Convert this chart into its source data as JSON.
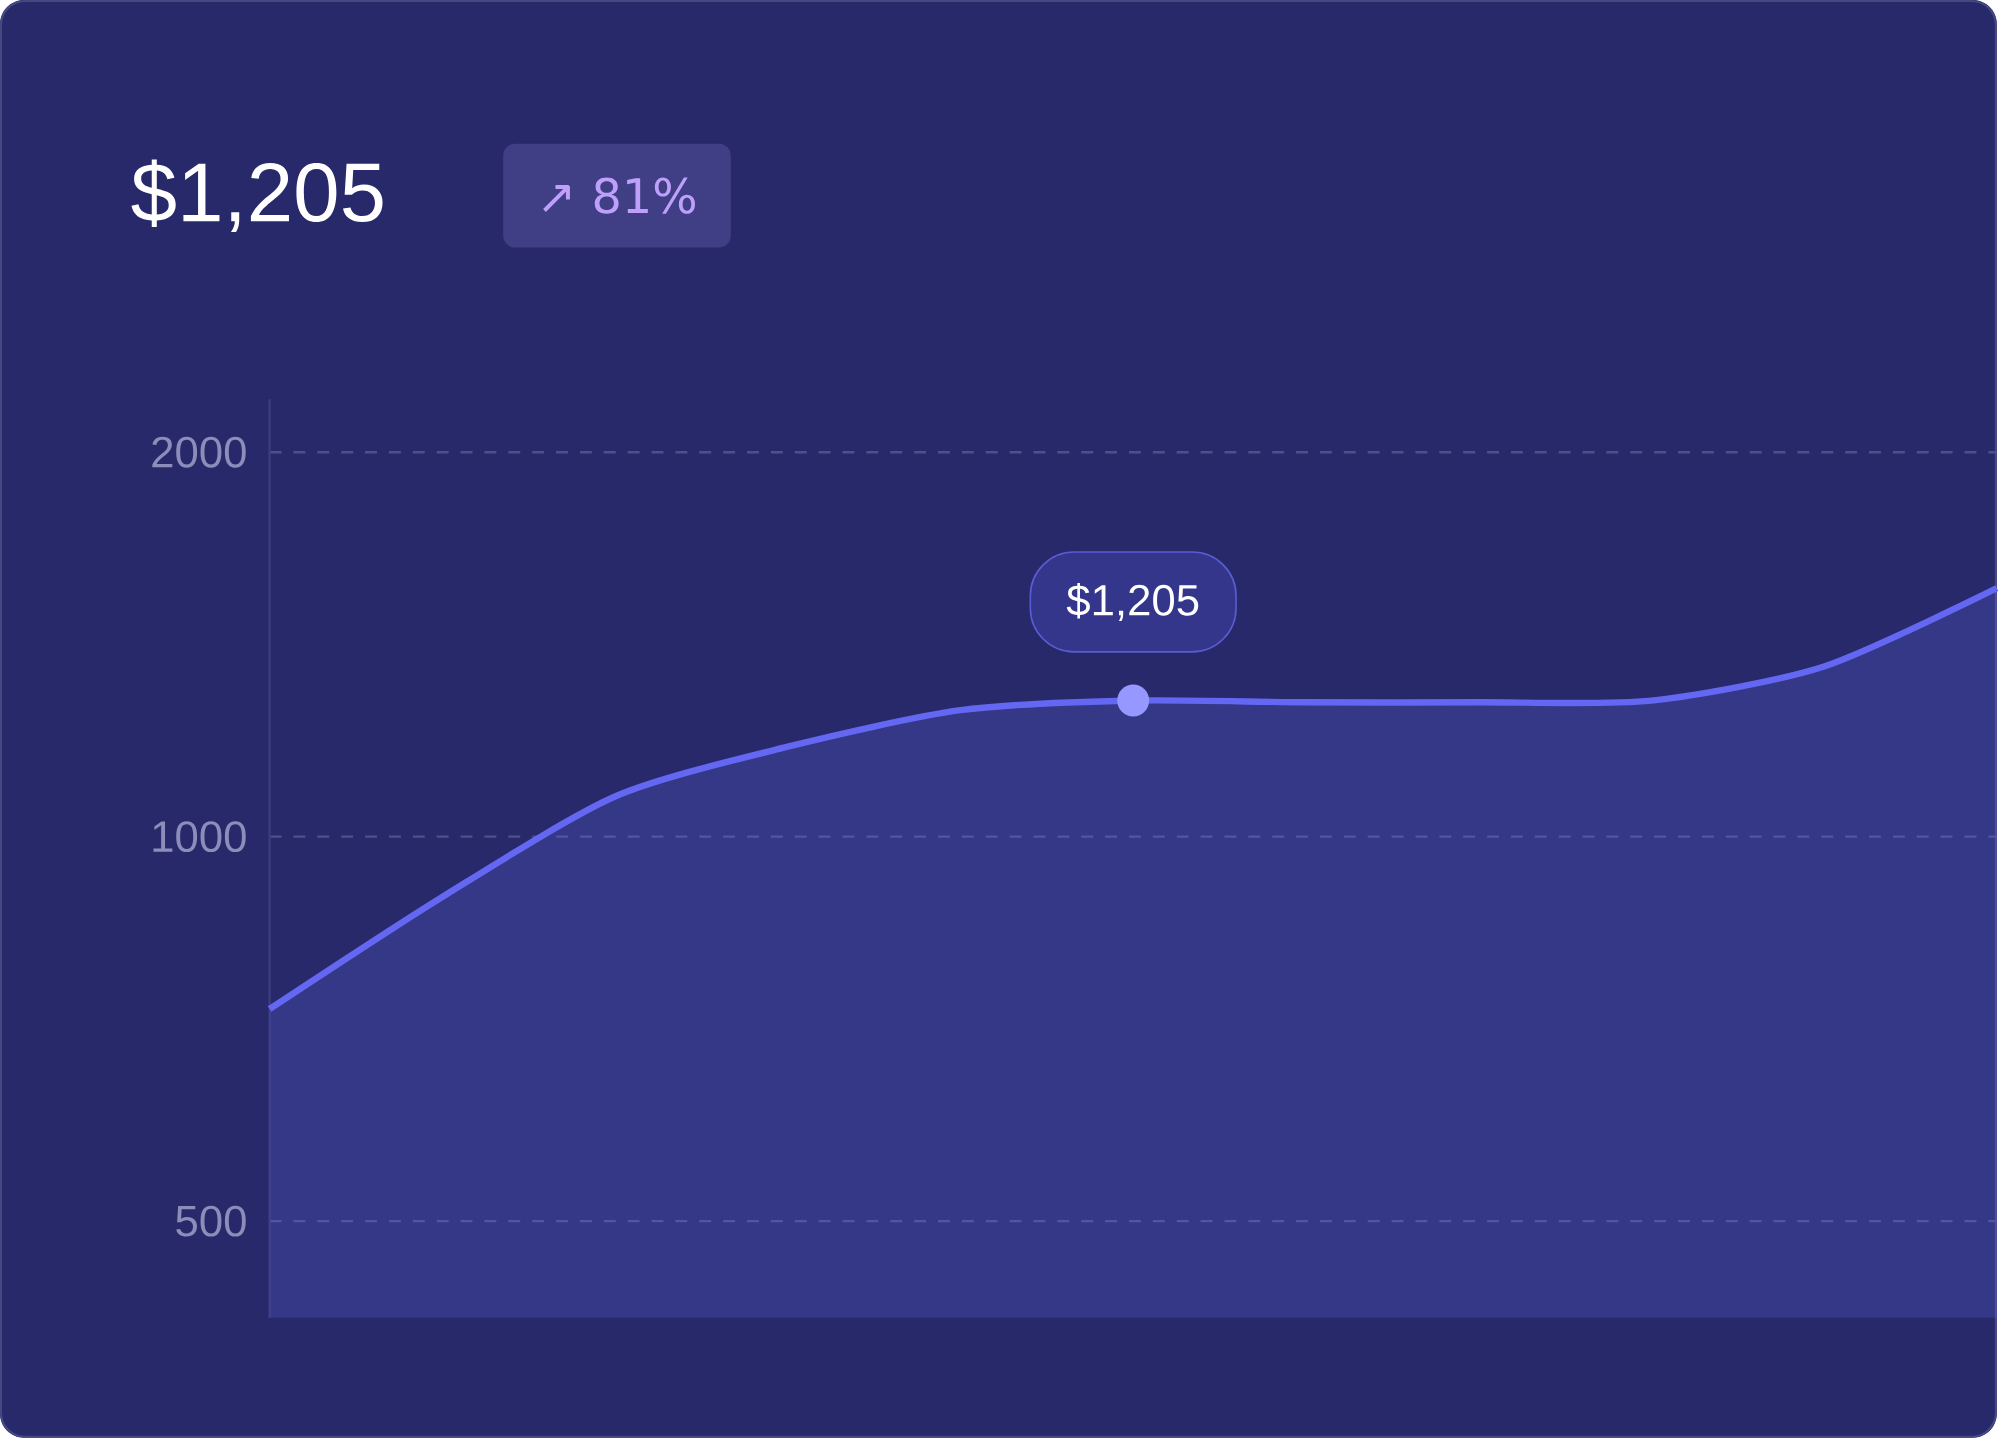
{
  "chart_data": {
    "type": "area",
    "title": "$1,205",
    "subtitle": "↗ 81%",
    "categories": [
      null,
      null,
      null,
      null,
      null,
      null,
      null,
      null,
      null,
      null,
      null
    ],
    "series": [
      {
        "color": "#6467f2",
        "values": [
          733,
          897,
          1075,
          1176,
          1256,
          1278,
          1274,
          1274,
          1278,
          1359,
          1565
        ]
      }
    ],
    "log": "y",
    "ylim": [
      420,
      2200
    ],
    "yticks": [
      500,
      1000,
      2000
    ],
    "grid": "y",
    "annotations": [
      {
        "text": "$1,205",
        "y": 1278
      }
    ]
  }
}
